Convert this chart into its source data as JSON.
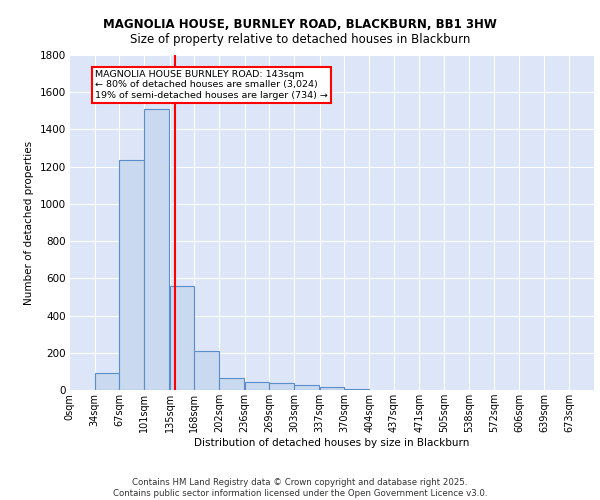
{
  "title_line1": "MAGNOLIA HOUSE, BURNLEY ROAD, BLACKBURN, BB1 3HW",
  "title_line2": "Size of property relative to detached houses in Blackburn",
  "xlabel": "Distribution of detached houses by size in Blackburn",
  "ylabel": "Number of detached properties",
  "footer_line1": "Contains HM Land Registry data © Crown copyright and database right 2025.",
  "footer_line2": "Contains public sector information licensed under the Open Government Licence v3.0.",
  "annotation_line1": "MAGNOLIA HOUSE BURNLEY ROAD: 143sqm",
  "annotation_line2": "← 80% of detached houses are smaller (3,024)",
  "annotation_line3": "19% of semi-detached houses are larger (734) →",
  "bar_color": "#c9d9f0",
  "bar_edge_color": "#5b8dc8",
  "red_line_x": 143,
  "background_color": "#dce6f8",
  "grid_color": "#ffffff",
  "categories": [
    "0sqm",
    "34sqm",
    "67sqm",
    "101sqm",
    "135sqm",
    "168sqm",
    "202sqm",
    "236sqm",
    "269sqm",
    "303sqm",
    "337sqm",
    "370sqm",
    "404sqm",
    "437sqm",
    "471sqm",
    "505sqm",
    "538sqm",
    "572sqm",
    "606sqm",
    "639sqm",
    "673sqm"
  ],
  "bin_edges": [
    0,
    34,
    67,
    101,
    135,
    168,
    202,
    236,
    269,
    303,
    337,
    370,
    404,
    437,
    471,
    505,
    538,
    572,
    606,
    639,
    673
  ],
  "bin_width": 33,
  "values": [
    0,
    90,
    1235,
    1510,
    560,
    210,
    65,
    45,
    35,
    28,
    15,
    5,
    0,
    0,
    0,
    0,
    0,
    0,
    0,
    0,
    0
  ],
  "ylim": [
    0,
    1800
  ],
  "xlim": [
    0,
    707
  ],
  "yticks": [
    0,
    200,
    400,
    600,
    800,
    1000,
    1200,
    1400,
    1600,
    1800
  ]
}
